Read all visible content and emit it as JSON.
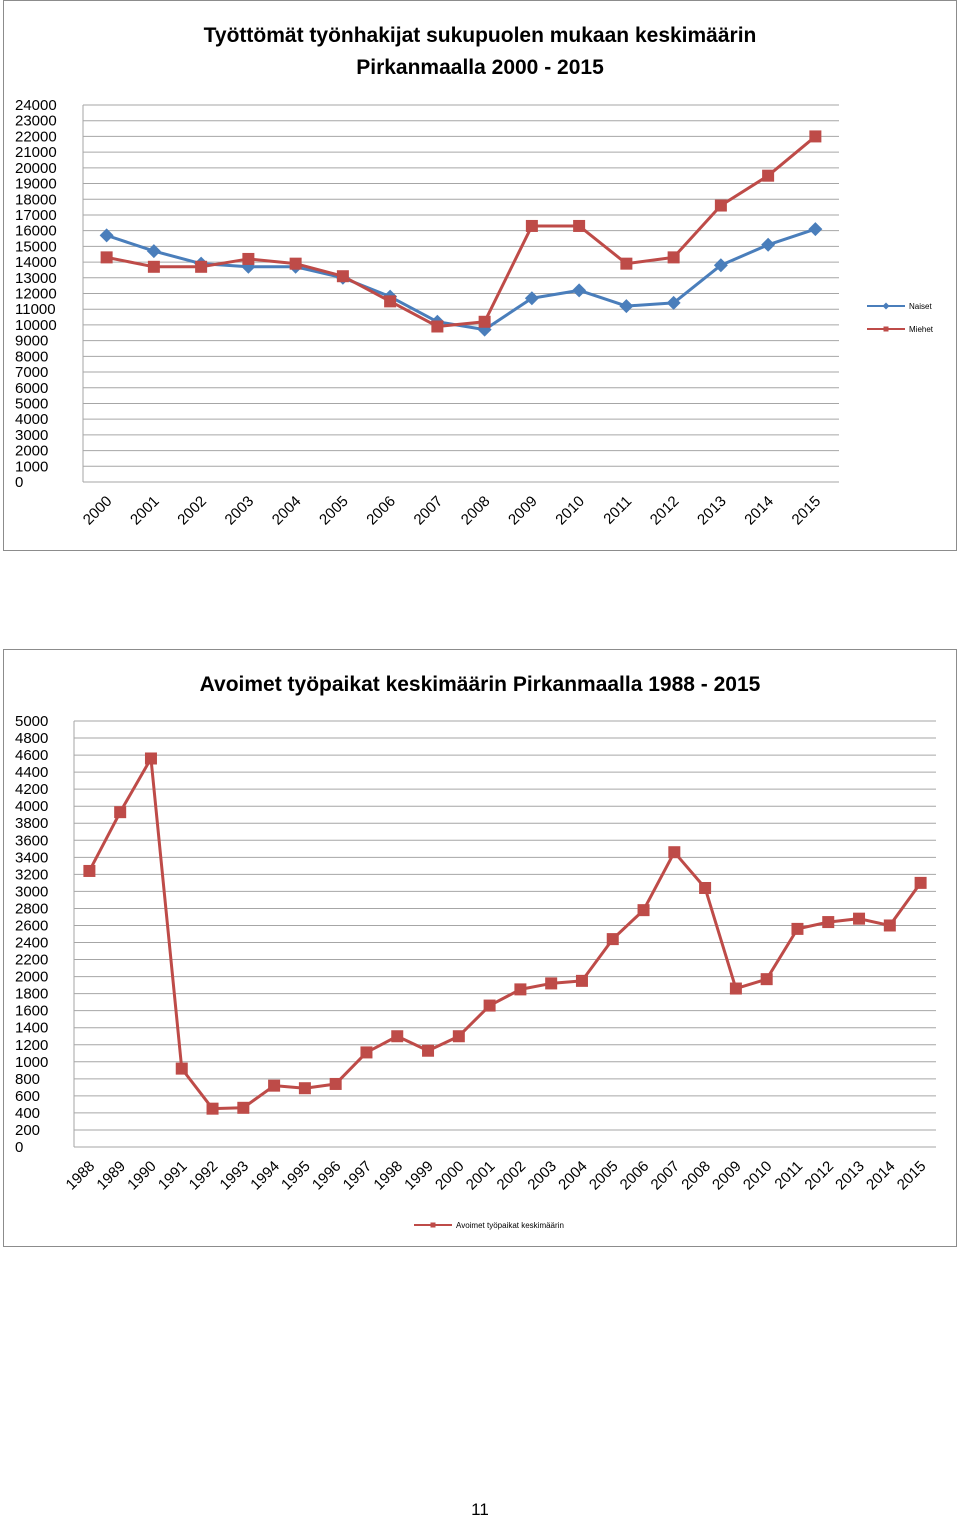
{
  "chart_data": [
    {
      "type": "line",
      "title": "Työttömät työnhakijat sukupuolen mukaan keskimäärin Pirkanmaalla 2000 - 2015",
      "title_lines": [
        "Työttömät työnhakijat sukupuolen mukaan keskimäärin",
        "Pirkanmaalla 2000 - 2015"
      ],
      "categories": [
        "2000",
        "2001",
        "2002",
        "2003",
        "2004",
        "2005",
        "2006",
        "2007",
        "2008",
        "2009",
        "2010",
        "2011",
        "2012",
        "2013",
        "2014",
        "2015"
      ],
      "ylim": [
        0,
        24000
      ],
      "ytick_step": 1000,
      "grid": true,
      "legend_position": "right",
      "series": [
        {
          "name": "Naiset",
          "color": "#4a7ebb",
          "marker": "diamond",
          "values": [
            15700,
            14700,
            13900,
            13700,
            13700,
            13000,
            11800,
            10200,
            9700,
            11700,
            12200,
            11200,
            11400,
            13800,
            15100,
            16100
          ]
        },
        {
          "name": "Miehet",
          "color": "#be4b48",
          "marker": "square",
          "values": [
            14300,
            13700,
            13700,
            14200,
            13900,
            13100,
            11500,
            9900,
            10200,
            16300,
            16300,
            13900,
            14300,
            17600,
            19500,
            22000
          ]
        }
      ]
    },
    {
      "type": "line",
      "title": "Avoimet työpaikat keskimäärin Pirkanmaalla 1988 - 2015",
      "title_lines": [
        "Avoimet työpaikat keskimäärin Pirkanmaalla 1988 - 2015"
      ],
      "categories": [
        "1988",
        "1989",
        "1990",
        "1991",
        "1992",
        "1993",
        "1994",
        "1995",
        "1996",
        "1997",
        "1998",
        "1999",
        "2000",
        "2001",
        "2002",
        "2003",
        "2004",
        "2005",
        "2006",
        "2007",
        "2008",
        "2009",
        "2010",
        "2011",
        "2012",
        "2013",
        "2014",
        "2015"
      ],
      "ylim": [
        0,
        5000
      ],
      "ytick_step": 200,
      "grid": true,
      "legend_position": "bottom",
      "series": [
        {
          "name": "Avoimet työpaikat keskimäärin",
          "color": "#be4b48",
          "marker": "square",
          "values": [
            3240,
            3930,
            4560,
            920,
            450,
            460,
            720,
            690,
            740,
            1110,
            1300,
            1130,
            1300,
            1660,
            1850,
            1920,
            1950,
            2440,
            2780,
            3460,
            3040,
            1860,
            1970,
            2560,
            2640,
            2680,
            2600,
            3100
          ]
        }
      ]
    }
  ],
  "page": {
    "number": "11"
  }
}
